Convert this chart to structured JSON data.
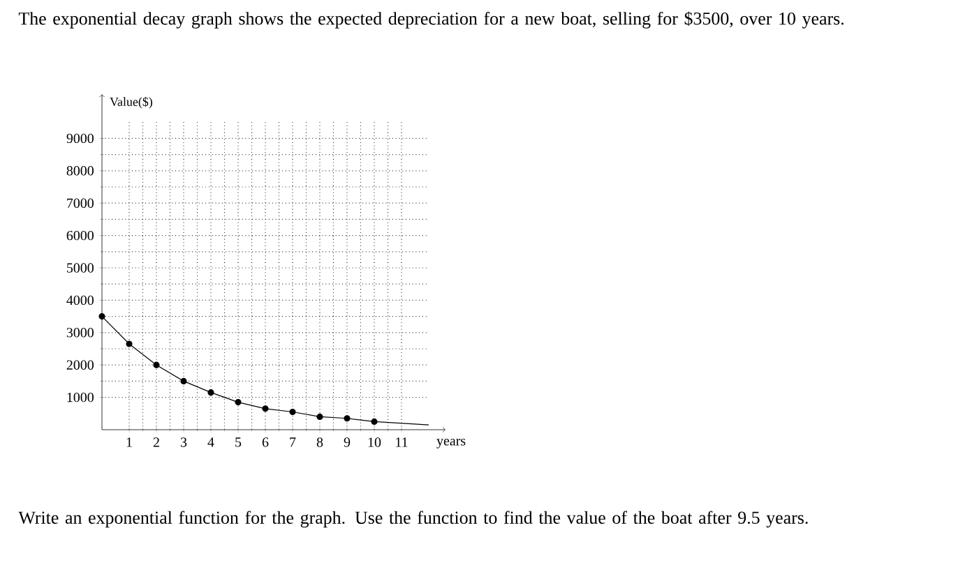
{
  "chart_data": {
    "type": "line",
    "title": "The exponential decay graph shows the expected depreciation for a new boat, selling for $3500, over 10 years.",
    "xlabel": "years",
    "ylabel": "Value($)",
    "annotations": [
      "Write an exponential function for the graph.  Use the function to find the value of the boat after 9.5 years."
    ],
    "series": [
      {
        "color": "#000000",
        "x": [
          0,
          1,
          2,
          3,
          4,
          5,
          6,
          7,
          8,
          9,
          10
        ],
        "values": [
          3500,
          2650,
          2000,
          1500,
          1150,
          850,
          650,
          550,
          400,
          350,
          250
        ],
        "marker": "circle"
      },
      {
        "color": "#000000",
        "x": [
          10,
          11,
          12
        ],
        "values": [
          250,
          200,
          150
        ],
        "marker": "none"
      }
    ],
    "xlim": [
      0,
      12
    ],
    "ylim": [
      0,
      9500
    ],
    "xticks": [
      1,
      2,
      3,
      4,
      5,
      6,
      7,
      8,
      9,
      10,
      11
    ],
    "yticks": [
      1000,
      2000,
      3000,
      4000,
      5000,
      6000,
      7000,
      8000,
      9000
    ],
    "grid": true
  }
}
